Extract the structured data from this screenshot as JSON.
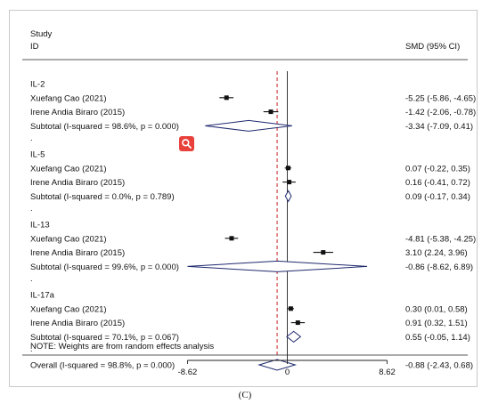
{
  "header": {
    "study_label": "Study",
    "id_label": "ID",
    "effect_label": "SMD (95% CI)"
  },
  "chart_data": {
    "type": "forest",
    "effect_measure": "SMD (95% CI)",
    "x_axis": {
      "ticks": [
        -8.62,
        0,
        8.62
      ],
      "tick_labels": [
        "-8.62",
        "0",
        "8.62"
      ]
    },
    "overall_line": -0.88,
    "groups": [
      {
        "name": "IL-2",
        "studies": [
          {
            "label": "Xuefang Cao (2021)",
            "est": -5.25,
            "lo": -5.86,
            "hi": -4.65,
            "ci_text": "-5.25 (-5.86, -4.65)"
          },
          {
            "label": "Irene Andia Biraro (2015)",
            "est": -1.42,
            "lo": -2.06,
            "hi": -0.78,
            "ci_text": "-1.42 (-2.06, -0.78)"
          }
        ],
        "subtotal": {
          "label": "Subtotal  (I-squared = 98.6%, p = 0.000)",
          "est": -3.34,
          "lo": -7.09,
          "hi": 0.41,
          "ci_text": "-3.34 (-7.09, 0.41)"
        }
      },
      {
        "name": "IL-5",
        "studies": [
          {
            "label": "Xuefang Cao (2021)",
            "est": 0.07,
            "lo": -0.22,
            "hi": 0.35,
            "ci_text": "0.07 (-0.22, 0.35)"
          },
          {
            "label": "Irene Andia Biraro (2015)",
            "est": 0.16,
            "lo": -0.41,
            "hi": 0.72,
            "ci_text": "0.16 (-0.41, 0.72)"
          }
        ],
        "subtotal": {
          "label": "Subtotal  (I-squared = 0.0%, p = 0.789)",
          "est": 0.09,
          "lo": -0.17,
          "hi": 0.34,
          "ci_text": "0.09 (-0.17, 0.34)"
        }
      },
      {
        "name": "IL-13",
        "studies": [
          {
            "label": "Xuefang Cao (2021)",
            "est": -4.81,
            "lo": -5.38,
            "hi": -4.25,
            "ci_text": "-4.81 (-5.38, -4.25)"
          },
          {
            "label": "Irene Andia Biraro (2015)",
            "est": 3.1,
            "lo": 2.24,
            "hi": 3.96,
            "ci_text": "3.10 (2.24, 3.96)"
          }
        ],
        "subtotal": {
          "label": "Subtotal  (I-squared = 99.6%, p = 0.000)",
          "est": -0.86,
          "lo": -8.62,
          "hi": 6.89,
          "ci_text": "-0.86 (-8.62, 6.89)"
        }
      },
      {
        "name": "IL-17a",
        "studies": [
          {
            "label": "Xuefang Cao (2021)",
            "est": 0.3,
            "lo": 0.01,
            "hi": 0.58,
            "ci_text": "0.30 (0.01, 0.58)"
          },
          {
            "label": "Irene Andia Biraro (2015)",
            "est": 0.91,
            "lo": 0.32,
            "hi": 1.51,
            "ci_text": "0.91 (0.32, 1.51)"
          }
        ],
        "subtotal": {
          "label": "Subtotal  (I-squared = 70.1%, p = 0.067)",
          "est": 0.55,
          "lo": -0.05,
          "hi": 1.14,
          "ci_text": "0.55 (-0.05, 1.14)"
        }
      }
    ],
    "overall": {
      "label": "Overall  (I-squared = 98.8%, p = 0.000)",
      "est": -0.88,
      "lo": -2.43,
      "hi": 0.68,
      "ci_text": "-0.88 (-2.43, 0.68)"
    },
    "note": "NOTE: Weights are from random effects analysis",
    "colors": {
      "diamond": "#1f2a6e",
      "overall_line": "#cc1f1f",
      "marker": "#111111",
      "zoom_button": "#e8413c"
    }
  },
  "caption": "(C)",
  "zoom_button": {
    "icon": "magnifier-icon"
  }
}
